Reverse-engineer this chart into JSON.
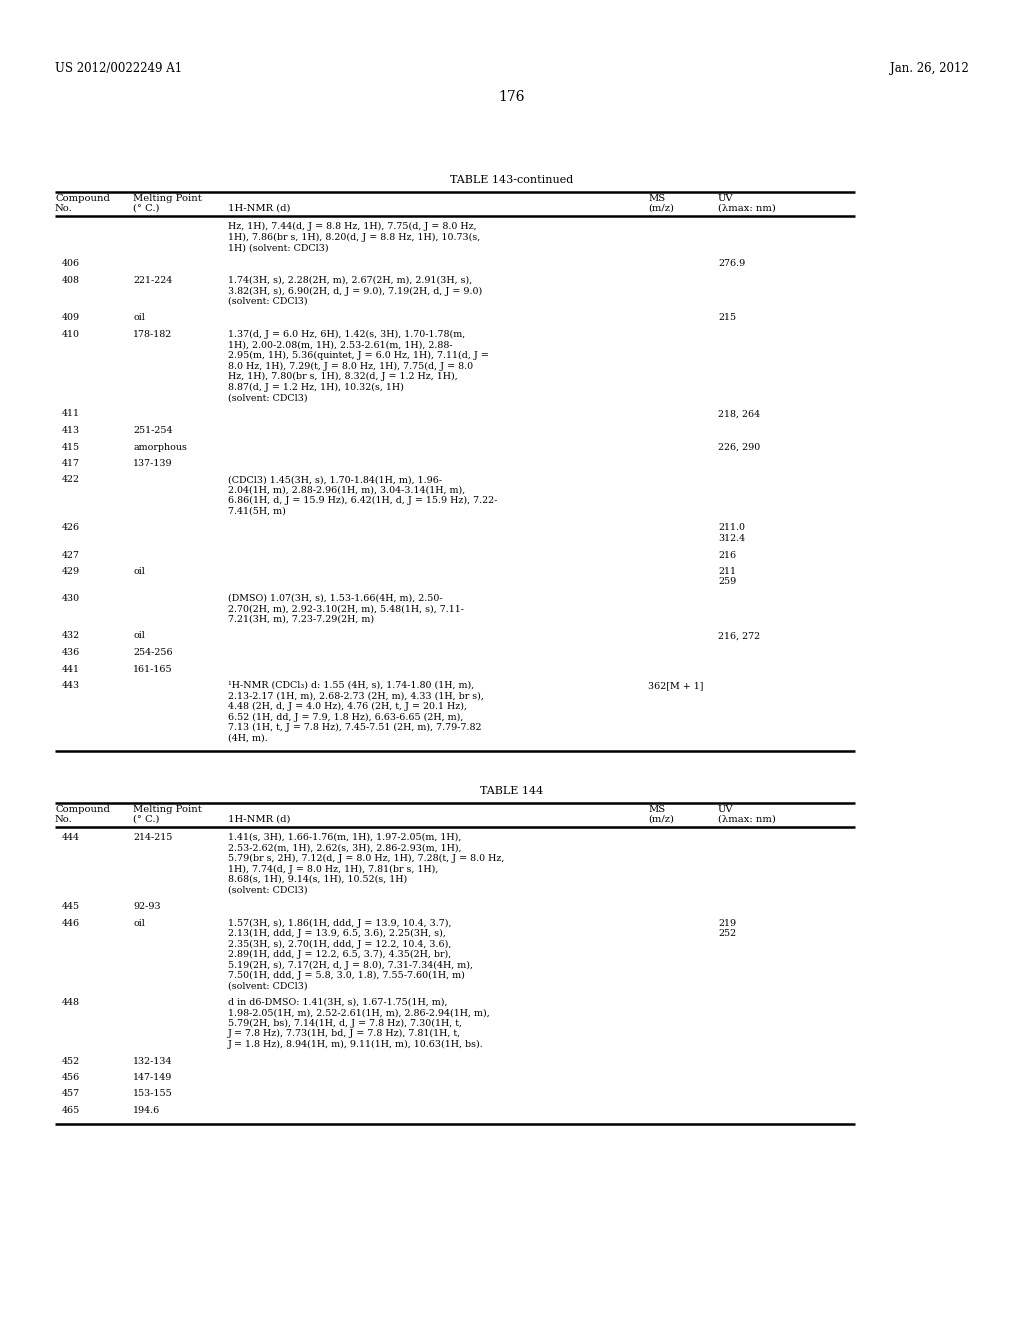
{
  "page_header_left": "US 2012/0022249 A1",
  "page_header_right": "Jan. 26, 2012",
  "page_number": "176",
  "table1_title": "TABLE 143-continued",
  "table2_title": "TABLE 144",
  "bg_color": "#ffffff",
  "text_color": "#000000",
  "fs_body": 6.8,
  "fs_header": 7.2,
  "fs_title": 8.0,
  "fs_page": 8.5,
  "table1_rows": [
    {
      "no": "",
      "mp": "",
      "nmr": "Hz, 1H), 7.44(d, J = 8.8 Hz, 1H), 7.75(d, J = 8.0 Hz,\n1H), 7.86(br s, 1H), 8.20(d, J = 8.8 Hz, 1H), 10.73(s,\n1H) (solvent: CDCl3)",
      "ms": "",
      "uv": ""
    },
    {
      "no": "406",
      "mp": "",
      "nmr": "",
      "ms": "",
      "uv": "276.9"
    },
    {
      "no": "408",
      "mp": "221-224",
      "nmr": "1.74(3H, s), 2.28(2H, m), 2.67(2H, m), 2.91(3H, s),\n3.82(3H, s), 6.90(2H, d, J = 9.0), 7.19(2H, d, J = 9.0)\n(solvent: CDCl3)",
      "ms": "",
      "uv": ""
    },
    {
      "no": "409",
      "mp": "oil",
      "nmr": "",
      "ms": "",
      "uv": "215"
    },
    {
      "no": "410",
      "mp": "178-182",
      "nmr": "1.37(d, J = 6.0 Hz, 6H), 1.42(s, 3H), 1.70-1.78(m,\n1H), 2.00-2.08(m, 1H), 2.53-2.61(m, 1H), 2.88-\n2.95(m, 1H), 5.36(quintet, J = 6.0 Hz, 1H), 7.11(d, J =\n8.0 Hz, 1H), 7.29(t, J = 8.0 Hz, 1H), 7.75(d, J = 8.0\nHz, 1H), 7.80(br s, 1H), 8.32(d, J = 1.2 Hz, 1H),\n8.87(d, J = 1.2 Hz, 1H), 10.32(s, 1H)\n(solvent: CDCl3)",
      "ms": "",
      "uv": ""
    },
    {
      "no": "411",
      "mp": "",
      "nmr": "",
      "ms": "",
      "uv": "218, 264"
    },
    {
      "no": "413",
      "mp": "251-254",
      "nmr": "",
      "ms": "",
      "uv": ""
    },
    {
      "no": "415",
      "mp": "amorphous",
      "nmr": "",
      "ms": "",
      "uv": "226, 290"
    },
    {
      "no": "417",
      "mp": "137-139",
      "nmr": "",
      "ms": "",
      "uv": ""
    },
    {
      "no": "422",
      "mp": "",
      "nmr": "(CDCl3) 1.45(3H, s), 1.70-1.84(1H, m), 1.96-\n2.04(1H, m), 2.88-2.96(1H, m), 3.04-3.14(1H, m),\n6.86(1H, d, J = 15.9 Hz), 6.42(1H, d, J = 15.9 Hz), 7.22-\n7.41(5H, m)",
      "ms": "",
      "uv": ""
    },
    {
      "no": "426",
      "mp": "",
      "nmr": "",
      "ms": "",
      "uv": "211.0\n312.4"
    },
    {
      "no": "427",
      "mp": "",
      "nmr": "",
      "ms": "",
      "uv": "216"
    },
    {
      "no": "429",
      "mp": "oil",
      "nmr": "",
      "ms": "",
      "uv": "211\n259"
    },
    {
      "no": "430",
      "mp": "",
      "nmr": "(DMSO) 1.07(3H, s), 1.53-1.66(4H, m), 2.50-\n2.70(2H, m), 2.92-3.10(2H, m), 5.48(1H, s), 7.11-\n7.21(3H, m), 7.23-7.29(2H, m)",
      "ms": "",
      "uv": ""
    },
    {
      "no": "432",
      "mp": "oil",
      "nmr": "",
      "ms": "",
      "uv": "216, 272"
    },
    {
      "no": "436",
      "mp": "254-256",
      "nmr": "",
      "ms": "",
      "uv": ""
    },
    {
      "no": "441",
      "mp": "161-165",
      "nmr": "",
      "ms": "",
      "uv": ""
    },
    {
      "no": "443",
      "mp": "",
      "nmr": "¹H-NMR (CDCl₃) d: 1.55 (4H, s), 1.74-1.80 (1H, m),\n2.13-2.17 (1H, m), 2.68-2.73 (2H, m), 4.33 (1H, br s),\n4.48 (2H, d, J = 4.0 Hz), 4.76 (2H, t, J = 20.1 Hz),\n6.52 (1H, dd, J = 7.9, 1.8 Hz), 6.63-6.65 (2H, m),\n7.13 (1H, t, J = 7.8 Hz), 7.45-7.51 (2H, m), 7.79-7.82\n(4H, m).",
      "ms": "362[M + 1]",
      "uv": ""
    }
  ],
  "table2_rows": [
    {
      "no": "444",
      "mp": "214-215",
      "nmr": "1.41(s, 3H), 1.66-1.76(m, 1H), 1.97-2.05(m, 1H),\n2.53-2.62(m, 1H), 2.62(s, 3H), 2.86-2.93(m, 1H),\n5.79(br s, 2H), 7.12(d, J = 8.0 Hz, 1H), 7.28(t, J = 8.0 Hz,\n1H), 7.74(d, J = 8.0 Hz, 1H), 7.81(br s, 1H),\n8.68(s, 1H), 9.14(s, 1H), 10.52(s, 1H)\n(solvent: CDCl3)",
      "ms": "",
      "uv": ""
    },
    {
      "no": "445",
      "mp": "92-93",
      "nmr": "",
      "ms": "",
      "uv": ""
    },
    {
      "no": "446",
      "mp": "oil",
      "nmr": "1.57(3H, s), 1.86(1H, ddd, J = 13.9, 10.4, 3.7),\n2.13(1H, ddd, J = 13.9, 6.5, 3.6), 2.25(3H, s),\n2.35(3H, s), 2.70(1H, ddd, J = 12.2, 10.4, 3.6),\n2.89(1H, ddd, J = 12.2, 6.5, 3.7), 4.35(2H, br),\n5.19(2H, s), 7.17(2H, d, J = 8.0), 7.31-7.34(4H, m),\n7.50(1H, ddd, J = 5.8, 3.0, 1.8), 7.55-7.60(1H, m)\n(solvent: CDCl3)",
      "ms": "",
      "uv": "219\n252"
    },
    {
      "no": "448",
      "mp": "",
      "nmr": "d in d6-DMSO: 1.41(3H, s), 1.67-1.75(1H, m),\n1.98-2.05(1H, m), 2.52-2.61(1H, m), 2.86-2.94(1H, m),\n5.79(2H, bs), 7.14(1H, d, J = 7.8 Hz), 7.30(1H, t,\nJ = 7.8 Hz), 7.73(1H, bd, J = 7.8 Hz), 7.81(1H, t,\nJ = 1.8 Hz), 8.94(1H, m), 9.11(1H, m), 10.63(1H, bs).",
      "ms": "",
      "uv": ""
    },
    {
      "no": "452",
      "mp": "132-134",
      "nmr": "",
      "ms": "",
      "uv": ""
    },
    {
      "no": "456",
      "mp": "147-149",
      "nmr": "",
      "ms": "",
      "uv": ""
    },
    {
      "no": "457",
      "mp": "153-155",
      "nmr": "",
      "ms": "",
      "uv": ""
    },
    {
      "no": "465",
      "mp": "194.6",
      "nmr": "",
      "ms": "",
      "uv": ""
    }
  ]
}
